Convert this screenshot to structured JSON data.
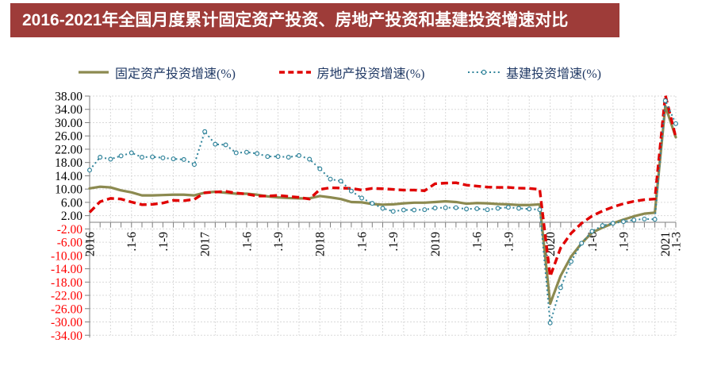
{
  "header": {
    "title": "2016-2021年全国月度累计固定资产投资、房地产投资和基建投资增速对比"
  },
  "legend": {
    "text_color": "#1f3864",
    "items": [
      {
        "label": "固定资产投资增速(%)",
        "color": "#8c8a50",
        "style": "solid"
      },
      {
        "label": "房地产投资增速(%)",
        "color": "#e00000",
        "style": "dashed"
      },
      {
        "label": "基建投资增速(%)",
        "color": "#31849b",
        "style": "dotted-with-markers"
      }
    ]
  },
  "colors": {
    "title_bar_bg": "#9e3c39",
    "title_text": "#ffffff",
    "axis": "#7f7f7f",
    "grid": "#d9d9d9"
  },
  "chart_data": {
    "type": "line",
    "title": "2016-2021年全国月度累计固定资产投资、房地产投资和基建投资增速对比",
    "xlabel": "",
    "ylabel": "",
    "n_points": 57,
    "legend_position": "top",
    "grid": {
      "show": true,
      "color": "#d9d9d9",
      "vertical_every_n_points": 2
    },
    "y_axis": {
      "min": -34,
      "max": 38,
      "step": 4,
      "decimals": 2,
      "positive_label_color": "#000000",
      "negative_label_color": "#ff0000"
    },
    "x_tick_labels": [
      {
        "index": 0,
        "label": "2016"
      },
      {
        "index": 4,
        "label": ".1-6"
      },
      {
        "index": 7,
        "label": ".1-9"
      },
      {
        "index": 11,
        "label": "2017"
      },
      {
        "index": 15,
        "label": ".1-6"
      },
      {
        "index": 18,
        "label": ".1-9"
      },
      {
        "index": 22,
        "label": "2018"
      },
      {
        "index": 26,
        "label": ".1-6"
      },
      {
        "index": 29,
        "label": ".1-9"
      },
      {
        "index": 33,
        "label": "2019"
      },
      {
        "index": 37,
        "label": ".1-6"
      },
      {
        "index": 40,
        "label": ".1-9"
      },
      {
        "index": 44,
        "label": "2020"
      },
      {
        "index": 48,
        "label": ".1-6"
      },
      {
        "index": 51,
        "label": ".1-9"
      },
      {
        "index": 55,
        "label": "2021"
      },
      {
        "index": 56,
        "label": ".1-3"
      }
    ],
    "series": [
      {
        "name": "固定资产投资增速(%)",
        "key": "fixed-asset",
        "color": "#8c8a50",
        "style": "solid",
        "values": [
          10.2,
          10.7,
          10.5,
          9.6,
          9.0,
          8.1,
          8.1,
          8.2,
          8.3,
          8.3,
          8.1,
          8.9,
          9.2,
          8.9,
          8.6,
          8.6,
          8.3,
          7.8,
          7.5,
          7.3,
          7.2,
          7.2,
          7.9,
          7.5,
          7.0,
          6.1,
          6.0,
          5.5,
          5.3,
          5.4,
          5.7,
          5.9,
          5.9,
          6.1,
          6.3,
          6.1,
          5.6,
          5.8,
          5.7,
          5.5,
          5.4,
          5.2,
          5.2,
          5.4,
          -24.5,
          -16.1,
          -10.3,
          -6.3,
          -3.1,
          -1.6,
          -0.3,
          0.8,
          1.8,
          2.6,
          2.9,
          35.0,
          25.6
        ]
      },
      {
        "name": "房地产投资增速(%)",
        "key": "real-estate",
        "color": "#e00000",
        "style": "dashed",
        "values": [
          3.0,
          6.2,
          7.2,
          7.0,
          6.1,
          5.3,
          5.4,
          5.8,
          6.6,
          6.5,
          6.9,
          8.9,
          9.1,
          9.3,
          8.8,
          8.5,
          7.9,
          7.9,
          8.1,
          7.8,
          7.5,
          7.0,
          9.9,
          10.4,
          10.3,
          10.2,
          9.7,
          10.2,
          10.1,
          9.9,
          9.7,
          9.7,
          9.5,
          11.6,
          11.8,
          11.9,
          11.2,
          10.9,
          10.6,
          10.5,
          10.5,
          10.3,
          10.2,
          9.9,
          -16.3,
          -7.7,
          -3.3,
          -0.3,
          1.9,
          3.4,
          4.6,
          5.6,
          6.3,
          6.8,
          7.0,
          38.3,
          25.6
        ]
      },
      {
        "name": "基建投资增速(%)",
        "key": "infrastructure",
        "color": "#31849b",
        "style": "dotted-with-markers",
        "values": [
          15.7,
          19.6,
          19.0,
          20.0,
          20.9,
          19.6,
          19.7,
          19.4,
          19.1,
          18.9,
          17.4,
          27.3,
          23.5,
          23.3,
          20.9,
          21.1,
          20.7,
          19.8,
          19.8,
          19.6,
          20.1,
          19.0,
          16.1,
          13.0,
          12.4,
          9.4,
          7.3,
          5.7,
          4.2,
          3.3,
          3.7,
          3.7,
          3.8,
          4.3,
          4.4,
          4.4,
          4.0,
          4.1,
          3.8,
          4.2,
          4.5,
          4.2,
          4.0,
          3.8,
          -30.3,
          -19.7,
          -11.8,
          -6.3,
          -2.7,
          -1.0,
          -0.3,
          0.2,
          0.7,
          1.0,
          0.9,
          36.6,
          29.7
        ]
      }
    ]
  }
}
